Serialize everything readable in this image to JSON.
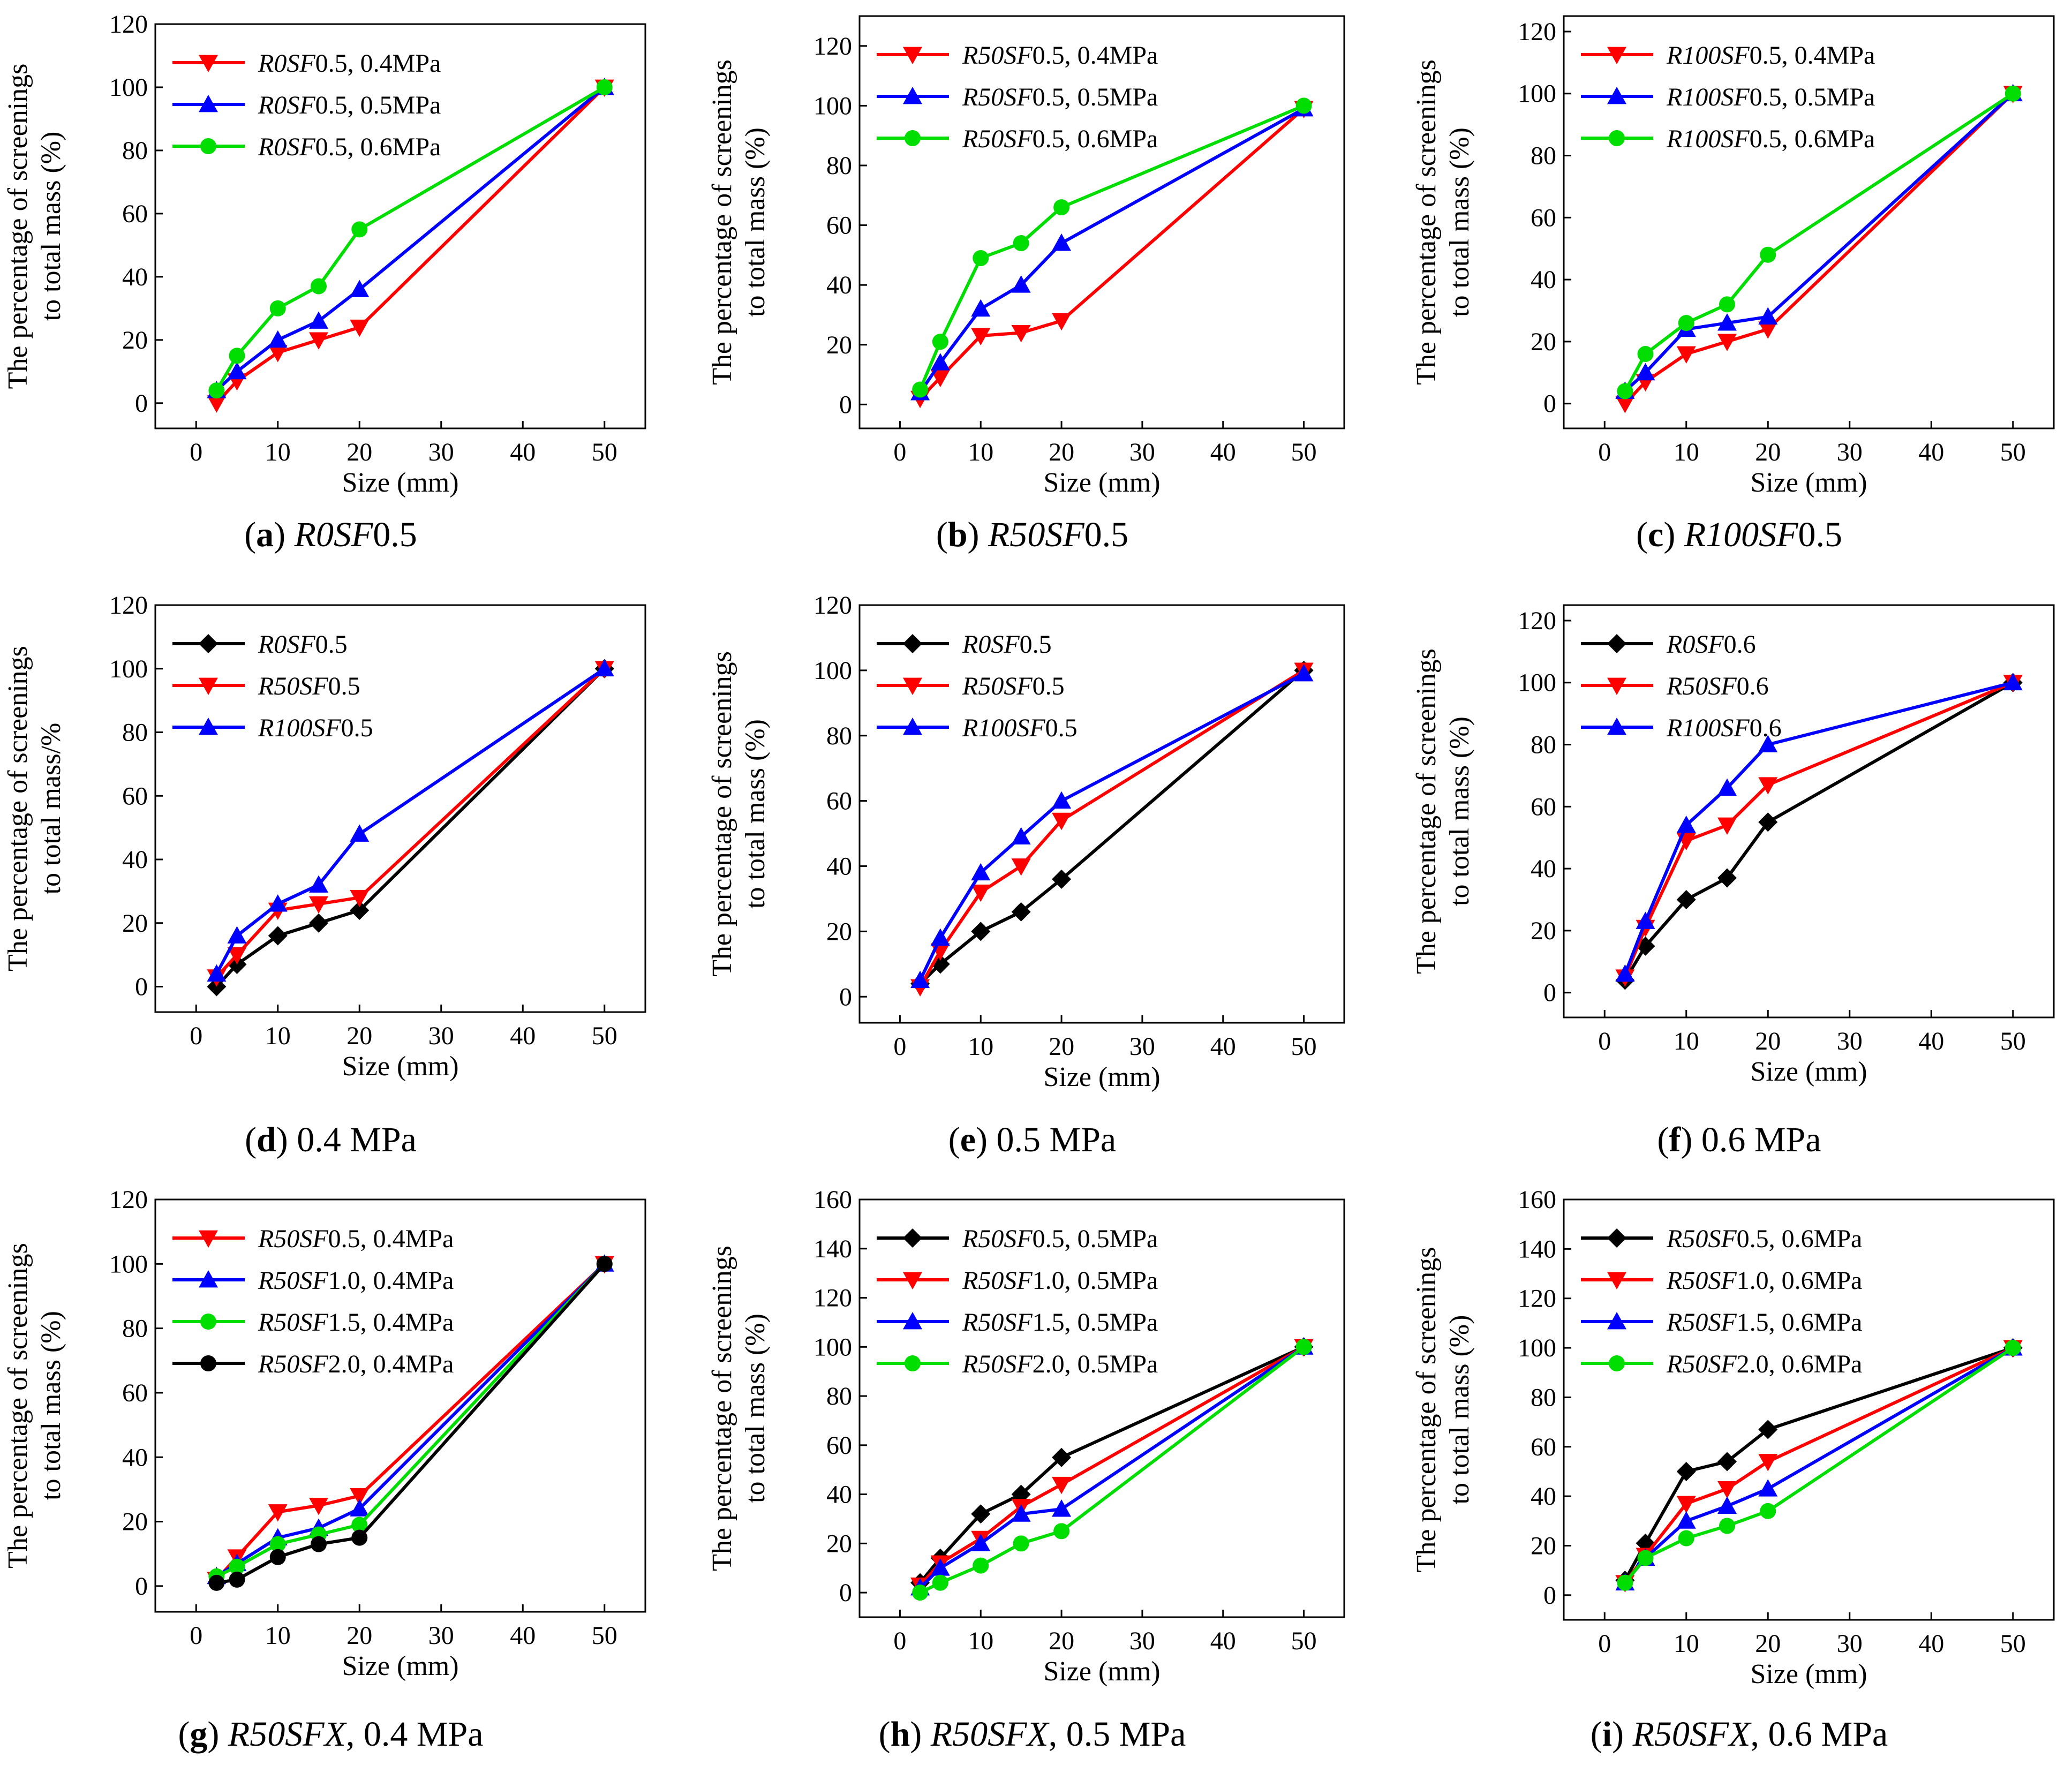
{
  "colors": {
    "red": "#ff0000",
    "blue": "#0000ff",
    "green": "#00dd00",
    "black": "#000000"
  },
  "chart_data": [
    {
      "id": "a",
      "type": "line",
      "caption": {
        "letter": "a",
        "head": "",
        "italic": "R0SF",
        "rest": "0.5"
      },
      "xlabel": "Size (mm)",
      "ylabel": [
        "The percentage of screenings",
        "to total mass (%)"
      ],
      "xlim": [
        -5,
        55
      ],
      "ylim": [
        -8,
        120
      ],
      "xticks": [
        0,
        10,
        20,
        30,
        40,
        50
      ],
      "yticks": [
        0,
        20,
        40,
        60,
        80,
        100,
        120
      ],
      "x": [
        2.5,
        5,
        10,
        15,
        20,
        50
      ],
      "series": [
        {
          "label": {
            "pre": "",
            "it": "R0SF",
            "post": "0.5, 0.4MPa"
          },
          "color": "red",
          "marker": "triangle-down",
          "values": [
            0,
            7,
            16,
            20,
            24,
            100
          ]
        },
        {
          "label": {
            "pre": "",
            "it": "R0SF",
            "post": "0.5, 0.5MPa"
          },
          "color": "blue",
          "marker": "triangle-up",
          "values": [
            4,
            10,
            20,
            26,
            36,
            100
          ]
        },
        {
          "label": {
            "pre": "",
            "it": "R0SF",
            "post": "0.5, 0.6MPa"
          },
          "color": "green",
          "marker": "circle",
          "values": [
            4,
            15,
            30,
            37,
            55,
            100
          ]
        }
      ]
    },
    {
      "id": "b",
      "type": "line",
      "caption": {
        "letter": "b",
        "head": "",
        "italic": "R50SF",
        "rest": "0.5"
      },
      "xlabel": "Size (mm)",
      "ylabel": [
        "The percentage of screenings",
        "to total mass (%)"
      ],
      "xlim": [
        -5,
        55
      ],
      "ylim": [
        -8,
        130
      ],
      "xticks": [
        0,
        10,
        20,
        30,
        40,
        50
      ],
      "yticks": [
        0,
        20,
        40,
        60,
        80,
        100,
        120
      ],
      "x": [
        2.5,
        5,
        10,
        15,
        20,
        50
      ],
      "series": [
        {
          "label": {
            "pre": "",
            "it": "R50SF",
            "post": "0.5, 0.4MPa"
          },
          "color": "red",
          "marker": "triangle-down",
          "values": [
            2,
            9,
            23,
            24,
            28,
            99
          ]
        },
        {
          "label": {
            "pre": "",
            "it": "R50SF",
            "post": "0.5, 0.5MPa"
          },
          "color": "blue",
          "marker": "triangle-up",
          "values": [
            4,
            14,
            32,
            40,
            54,
            99
          ]
        },
        {
          "label": {
            "pre": "",
            "it": "R50SF",
            "post": "0.5, 0.6MPa"
          },
          "color": "green",
          "marker": "circle",
          "values": [
            5,
            21,
            49,
            54,
            66,
            100
          ]
        }
      ]
    },
    {
      "id": "c",
      "type": "line",
      "caption": {
        "letter": "c",
        "head": "",
        "italic": "R100SF",
        "rest": "0.5"
      },
      "xlabel": "Size (mm)",
      "ylabel": [
        "The percentage of screenings",
        "to total mass (%)"
      ],
      "xlim": [
        -5,
        55
      ],
      "ylim": [
        -8,
        125
      ],
      "xticks": [
        0,
        10,
        20,
        30,
        40,
        50
      ],
      "yticks": [
        0,
        20,
        40,
        60,
        80,
        100,
        120
      ],
      "x": [
        2.5,
        5,
        10,
        15,
        20,
        50
      ],
      "series": [
        {
          "label": {
            "pre": "",
            "it": "R100SF",
            "post": "0.5, 0.4MPa"
          },
          "color": "red",
          "marker": "triangle-down",
          "values": [
            0,
            7,
            16,
            20,
            24,
            100
          ]
        },
        {
          "label": {
            "pre": "",
            "it": "R100SF",
            "post": "0.5, 0.5MPa"
          },
          "color": "blue",
          "marker": "triangle-up",
          "values": [
            4,
            10,
            24,
            26,
            28,
            100
          ]
        },
        {
          "label": {
            "pre": "",
            "it": "R100SF",
            "post": "0.5, 0.6MPa"
          },
          "color": "green",
          "marker": "circle",
          "values": [
            4,
            16,
            26,
            32,
            48,
            100
          ]
        }
      ]
    },
    {
      "id": "d",
      "type": "line",
      "caption": {
        "letter": "d",
        "head": "0.4 MPa",
        "italic": "",
        "rest": ""
      },
      "xlabel": "Size (mm)",
      "ylabel": [
        "The percentage of screenings",
        "to total mass/%"
      ],
      "xlim": [
        -5,
        55
      ],
      "ylim": [
        -8,
        120
      ],
      "xticks": [
        0,
        10,
        20,
        30,
        40,
        50
      ],
      "yticks": [
        0,
        20,
        40,
        60,
        80,
        100,
        120
      ],
      "x": [
        2.5,
        5,
        10,
        15,
        20,
        50
      ],
      "series": [
        {
          "label": {
            "pre": "",
            "it": "R0SF",
            "post": "0.5"
          },
          "color": "black",
          "marker": "diamond",
          "values": [
            0,
            7,
            16,
            20,
            24,
            100
          ]
        },
        {
          "label": {
            "pre": "",
            "it": "R50SF",
            "post": "0.5"
          },
          "color": "red",
          "marker": "triangle-down",
          "values": [
            3,
            10,
            24,
            26,
            28,
            100
          ]
        },
        {
          "label": {
            "pre": "",
            "it": "R100SF",
            "post": "0.5"
          },
          "color": "blue",
          "marker": "triangle-up",
          "values": [
            4,
            16,
            26,
            32,
            48,
            100
          ]
        }
      ]
    },
    {
      "id": "e",
      "type": "line",
      "caption": {
        "letter": "e",
        "head": "0.5 MPa",
        "italic": "",
        "rest": ""
      },
      "xlabel": "Size (mm)",
      "ylabel": [
        "The percentage of screenings",
        "to total mass (%)"
      ],
      "xlim": [
        -5,
        55
      ],
      "ylim": [
        -8,
        120
      ],
      "xticks": [
        0,
        10,
        20,
        30,
        40,
        50
      ],
      "yticks": [
        0,
        20,
        40,
        60,
        80,
        100,
        120
      ],
      "x": [
        2.5,
        5,
        10,
        15,
        20,
        50
      ],
      "series": [
        {
          "label": {
            "pre": "",
            "it": "R0SF",
            "post": "0.5"
          },
          "color": "black",
          "marker": "diamond",
          "values": [
            4,
            10,
            20,
            26,
            36,
            100
          ]
        },
        {
          "label": {
            "pre": "",
            "it": "R50SF",
            "post": "0.5"
          },
          "color": "red",
          "marker": "triangle-down",
          "values": [
            3,
            14,
            32,
            40,
            54,
            100
          ]
        },
        {
          "label": {
            "pre": "",
            "it": "R100SF",
            "post": "0.5"
          },
          "color": "blue",
          "marker": "triangle-up",
          "values": [
            5,
            18,
            38,
            49,
            60,
            99
          ]
        }
      ]
    },
    {
      "id": "f",
      "type": "line",
      "caption": {
        "letter": "f",
        "head": "0.6 MPa",
        "italic": "",
        "rest": ""
      },
      "xlabel": "Size (mm)",
      "ylabel": [
        "The percentage of screenings",
        "to total mass (%)"
      ],
      "xlim": [
        -5,
        55
      ],
      "ylim": [
        -8,
        125
      ],
      "xticks": [
        0,
        10,
        20,
        30,
        40,
        50
      ],
      "yticks": [
        0,
        20,
        40,
        60,
        80,
        100,
        120
      ],
      "x": [
        2.5,
        5,
        10,
        15,
        20,
        50
      ],
      "series": [
        {
          "label": {
            "pre": "",
            "it": "R0SF",
            "post": "0.6"
          },
          "color": "black",
          "marker": "diamond",
          "values": [
            4,
            15,
            30,
            37,
            55,
            100
          ]
        },
        {
          "label": {
            "pre": "",
            "it": "R50SF",
            "post": "0.6"
          },
          "color": "red",
          "marker": "triangle-down",
          "values": [
            5,
            21,
            49,
            54,
            67,
            100
          ]
        },
        {
          "label": {
            "pre": "",
            "it": "R100SF",
            "post": "0.6"
          },
          "color": "blue",
          "marker": "triangle-up",
          "values": [
            6,
            23,
            54,
            66,
            80,
            100
          ]
        }
      ]
    },
    {
      "id": "g",
      "type": "line",
      "caption": {
        "letter": "g",
        "head": "",
        "italic": "R50SFX",
        "rest": ", 0.4 MPa"
      },
      "xlabel": "Size (mm)",
      "ylabel": [
        "The percentage of screenings",
        "to total mass (%)"
      ],
      "xlim": [
        -5,
        55
      ],
      "ylim": [
        -8,
        120
      ],
      "xticks": [
        0,
        10,
        20,
        30,
        40,
        50
      ],
      "yticks": [
        0,
        20,
        40,
        60,
        80,
        100,
        120
      ],
      "x": [
        2.5,
        5,
        10,
        15,
        20,
        50
      ],
      "series": [
        {
          "label": {
            "pre": "",
            "it": "R50SF",
            "post": "0.5, 0.4MPa"
          },
          "color": "red",
          "marker": "triangle-down",
          "values": [
            2,
            9,
            23,
            25,
            28,
            100
          ]
        },
        {
          "label": {
            "pre": "",
            "it": "R50SF",
            "post": "1.0, 0.4MPa"
          },
          "color": "blue",
          "marker": "triangle-up",
          "values": [
            3,
            7,
            15,
            18,
            24,
            100
          ]
        },
        {
          "label": {
            "pre": "",
            "it": "R50SF",
            "post": "1.5, 0.4MPa"
          },
          "color": "green",
          "marker": "circle",
          "values": [
            3,
            6,
            13,
            16,
            19,
            100
          ]
        },
        {
          "label": {
            "pre": "",
            "it": "R50SF",
            "post": "2.0, 0.4MPa"
          },
          "color": "black",
          "marker": "circle",
          "values": [
            1,
            2,
            9,
            13,
            15,
            100
          ]
        }
      ]
    },
    {
      "id": "h",
      "type": "line",
      "caption": {
        "letter": "h",
        "head": "",
        "italic": "R50SFX",
        "rest": ", 0.5 MPa"
      },
      "xlabel": "Size (mm)",
      "ylabel": [
        "The percentage of screenings",
        "to total mass (%)"
      ],
      "xlim": [
        -5,
        55
      ],
      "ylim": [
        -10,
        160
      ],
      "xticks": [
        0,
        10,
        20,
        30,
        40,
        50
      ],
      "yticks": [
        0,
        20,
        40,
        60,
        80,
        100,
        120,
        140,
        160
      ],
      "x": [
        2.5,
        5,
        10,
        15,
        20,
        50
      ],
      "series": [
        {
          "label": {
            "pre": "",
            "it": "R50SF",
            "post": "0.5, 0.5MPa"
          },
          "color": "black",
          "marker": "diamond",
          "values": [
            4,
            14,
            32,
            40,
            55,
            100
          ]
        },
        {
          "label": {
            "pre": "",
            "it": "R50SF",
            "post": "1.0, 0.5MPa"
          },
          "color": "red",
          "marker": "triangle-down",
          "values": [
            3,
            12,
            22,
            35,
            44,
            100
          ]
        },
        {
          "label": {
            "pre": "",
            "it": "R50SF",
            "post": "1.5, 0.5MPa"
          },
          "color": "blue",
          "marker": "triangle-up",
          "values": [
            2,
            10,
            20,
            32,
            34,
            100
          ]
        },
        {
          "label": {
            "pre": "",
            "it": "R50SF",
            "post": "2.0, 0.5MPa"
          },
          "color": "green",
          "marker": "circle",
          "values": [
            0,
            4,
            11,
            20,
            25,
            100
          ]
        }
      ]
    },
    {
      "id": "i",
      "type": "line",
      "caption": {
        "letter": "i",
        "head": "",
        "italic": "R50SFX",
        "rest": ", 0.6 MPa"
      },
      "xlabel": "Size (mm)",
      "ylabel": [
        "The percentage of screenings",
        "to total mass (%)"
      ],
      "xlim": [
        -5,
        55
      ],
      "ylim": [
        -10,
        160
      ],
      "xticks": [
        0,
        10,
        20,
        30,
        40,
        50
      ],
      "yticks": [
        0,
        20,
        40,
        60,
        80,
        100,
        120,
        140,
        160
      ],
      "x": [
        2.5,
        5,
        10,
        15,
        20,
        50
      ],
      "series": [
        {
          "label": {
            "pre": "",
            "it": "R50SF",
            "post": "0.5, 0.6MPa"
          },
          "color": "black",
          "marker": "diamond",
          "values": [
            6,
            21,
            50,
            54,
            67,
            100
          ]
        },
        {
          "label": {
            "pre": "",
            "it": "R50SF",
            "post": "1.0, 0.6MPa"
          },
          "color": "red",
          "marker": "triangle-down",
          "values": [
            5,
            16,
            37,
            43,
            54,
            100
          ]
        },
        {
          "label": {
            "pre": "",
            "it": "R50SF",
            "post": "1.5, 0.6MPa"
          },
          "color": "blue",
          "marker": "triangle-up",
          "values": [
            5,
            15,
            30,
            36,
            43,
            100
          ]
        },
        {
          "label": {
            "pre": "",
            "it": "R50SF",
            "post": "2.0, 0.6MPa"
          },
          "color": "green",
          "marker": "circle",
          "values": [
            5,
            15,
            23,
            28,
            34,
            100
          ]
        }
      ]
    }
  ]
}
